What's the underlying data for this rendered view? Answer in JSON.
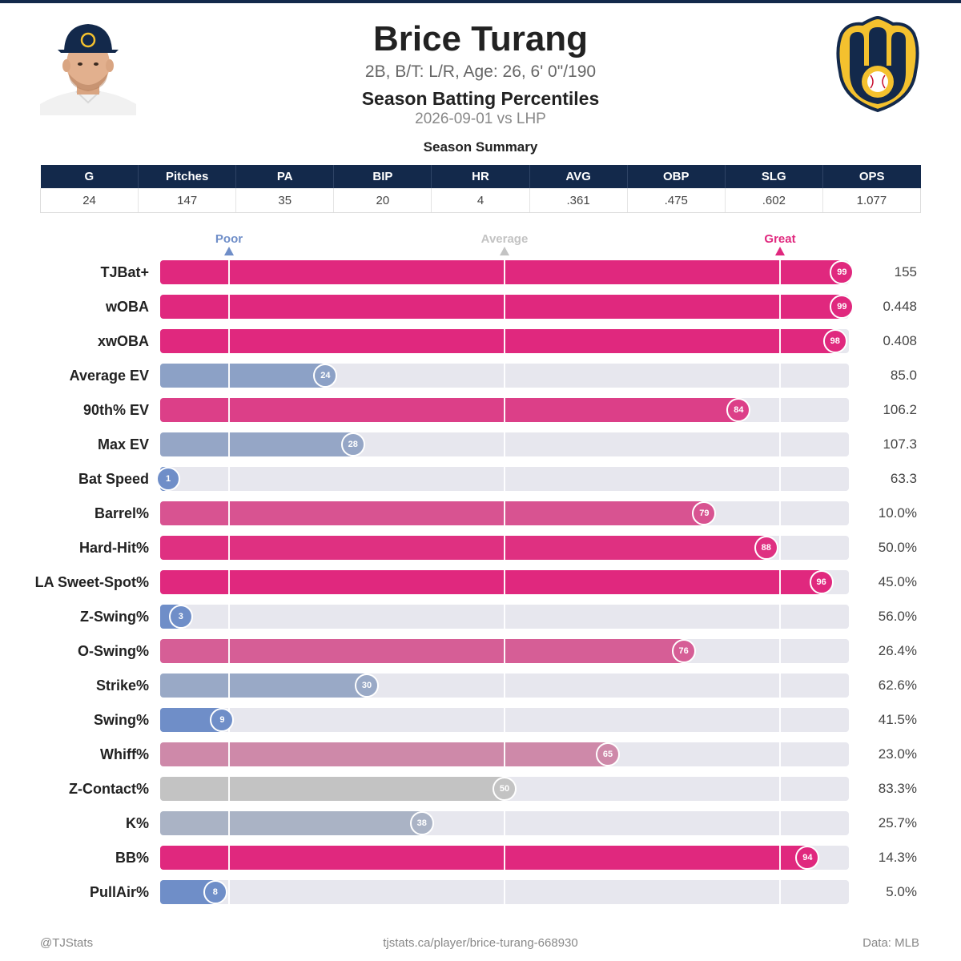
{
  "header": {
    "player_name": "Brice Turang",
    "bio": "2B, B/T: L/R, Age: 26, 6' 0\"/190",
    "subtitle": "Season Batting Percentiles",
    "date_split": "2026-09-01 vs LHP"
  },
  "summary": {
    "title": "Season Summary",
    "columns": [
      "G",
      "Pitches",
      "PA",
      "BIP",
      "HR",
      "AVG",
      "OBP",
      "SLG",
      "OPS"
    ],
    "values": [
      "24",
      "147",
      "35",
      "20",
      "4",
      ".361",
      ".475",
      ".602",
      "1.077"
    ]
  },
  "scale_markers": {
    "poor": "Poor",
    "average": "Average",
    "great": "Great"
  },
  "colors": {
    "navy": "#13294b",
    "great": "#e0287e",
    "poor": "#6f8ec8",
    "average": "#c3c3c3",
    "track": "#e7e7ee",
    "logo_gold": "#f4c12e"
  },
  "chart_data": {
    "type": "bar",
    "orientation": "horizontal",
    "xlim": [
      0,
      100
    ],
    "reference_lines": [
      10,
      50,
      90
    ],
    "categories": [
      "TJBat+",
      "wOBA",
      "xwOBA",
      "Average EV",
      "90th% EV",
      "Max EV",
      "Bat Speed",
      "Barrel%",
      "Hard-Hit%",
      "LA Sweet-Spot%",
      "Z-Swing%",
      "O-Swing%",
      "Strike%",
      "Swing%",
      "Whiff%",
      "Z-Contact%",
      "K%",
      "BB%",
      "PullAir%"
    ],
    "percentiles": [
      99,
      99,
      98,
      24,
      84,
      28,
      1,
      79,
      88,
      96,
      3,
      76,
      30,
      9,
      65,
      50,
      38,
      94,
      8
    ],
    "stat_values": [
      "155",
      "0.448",
      "0.408",
      "85.0",
      "106.2",
      "107.3",
      "63.3",
      "10.0%",
      "50.0%",
      "45.0%",
      "56.0%",
      "26.4%",
      "62.6%",
      "41.5%",
      "23.0%",
      "83.3%",
      "25.7%",
      "14.3%",
      "5.0%"
    ]
  },
  "footer": {
    "left": "@TJStats",
    "center": "tjstats.ca/player/brice-turang-668930",
    "right": "Data: MLB"
  }
}
